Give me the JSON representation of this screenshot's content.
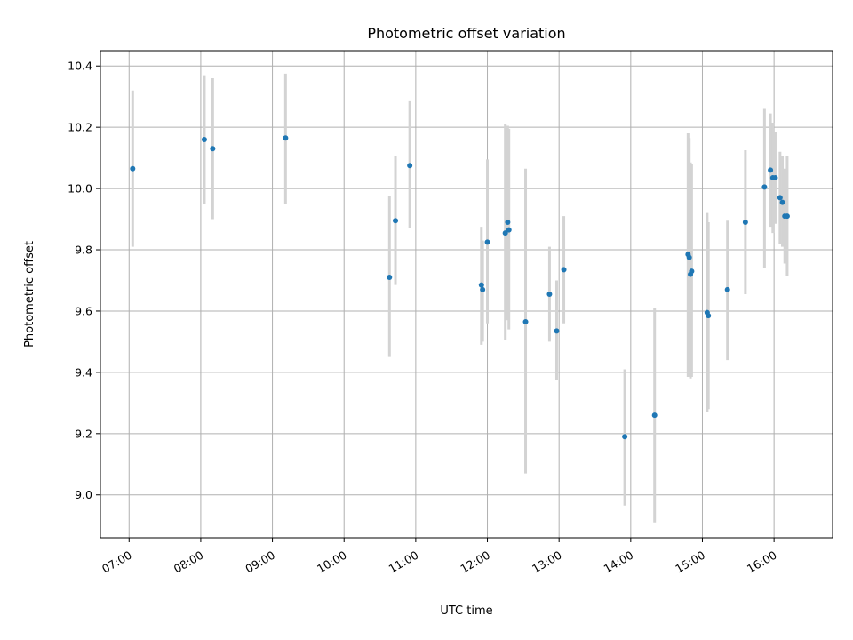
{
  "chart_data": {
    "type": "scatter",
    "title": "Photometric offset variation",
    "xlabel": "UTC time",
    "ylabel": "Photometric offset",
    "xlim": [
      "06:36",
      "16:49"
    ],
    "ylim": [
      8.86,
      10.45
    ],
    "grid": true,
    "x_ticks": [
      "07:00",
      "08:00",
      "09:00",
      "10:00",
      "11:00",
      "12:00",
      "13:00",
      "14:00",
      "15:00",
      "16:00"
    ],
    "y_ticks": [
      "9.0",
      "9.2",
      "9.4",
      "9.6",
      "9.8",
      "10.0",
      "10.2",
      "10.4"
    ],
    "colors": {
      "point": "#1f77b4",
      "errorbar": "#d3d3d3",
      "grid": "#b0b0b0"
    },
    "points": [
      {
        "x": "07:03",
        "y": 10.065,
        "ylo": 9.81,
        "yhi": 10.32
      },
      {
        "x": "08:03",
        "y": 10.16,
        "ylo": 9.95,
        "yhi": 10.37
      },
      {
        "x": "08:10",
        "y": 10.13,
        "ylo": 9.9,
        "yhi": 10.36
      },
      {
        "x": "09:11",
        "y": 10.165,
        "ylo": 9.95,
        "yhi": 10.375
      },
      {
        "x": "10:38",
        "y": 9.71,
        "ylo": 9.45,
        "yhi": 9.975
      },
      {
        "x": "10:43",
        "y": 9.895,
        "ylo": 9.685,
        "yhi": 10.105
      },
      {
        "x": "10:55",
        "y": 10.075,
        "ylo": 9.87,
        "yhi": 10.285
      },
      {
        "x": "11:55",
        "y": 9.685,
        "ylo": 9.49,
        "yhi": 9.875
      },
      {
        "x": "11:56",
        "y": 9.67,
        "ylo": 9.5,
        "yhi": 9.83
      },
      {
        "x": "12:00",
        "y": 9.825,
        "ylo": 9.56,
        "yhi": 10.095
      },
      {
        "x": "12:15",
        "y": 9.855,
        "ylo": 9.505,
        "yhi": 10.21
      },
      {
        "x": "12:17",
        "y": 9.89,
        "ylo": 9.57,
        "yhi": 10.205
      },
      {
        "x": "12:18",
        "y": 9.865,
        "ylo": 9.54,
        "yhi": 10.195
      },
      {
        "x": "12:32",
        "y": 9.565,
        "ylo": 9.07,
        "yhi": 10.065
      },
      {
        "x": "12:52",
        "y": 9.655,
        "ylo": 9.5,
        "yhi": 9.81
      },
      {
        "x": "12:58",
        "y": 9.535,
        "ylo": 9.375,
        "yhi": 9.7
      },
      {
        "x": "13:04",
        "y": 9.735,
        "ylo": 9.56,
        "yhi": 9.91
      },
      {
        "x": "13:55",
        "y": 9.19,
        "ylo": 8.965,
        "yhi": 9.41
      },
      {
        "x": "14:20",
        "y": 9.26,
        "ylo": 8.91,
        "yhi": 9.61
      },
      {
        "x": "14:48",
        "y": 9.785,
        "ylo": 9.385,
        "yhi": 10.18
      },
      {
        "x": "14:49",
        "y": 9.775,
        "ylo": 9.39,
        "yhi": 10.165
      },
      {
        "x": "14:50",
        "y": 9.72,
        "ylo": 9.38,
        "yhi": 10.085
      },
      {
        "x": "14:51",
        "y": 9.73,
        "ylo": 9.385,
        "yhi": 10.08
      },
      {
        "x": "15:04",
        "y": 9.595,
        "ylo": 9.27,
        "yhi": 9.92
      },
      {
        "x": "15:05",
        "y": 9.585,
        "ylo": 9.28,
        "yhi": 9.89
      },
      {
        "x": "15:21",
        "y": 9.67,
        "ylo": 9.44,
        "yhi": 9.895
      },
      {
        "x": "15:36",
        "y": 9.89,
        "ylo": 9.655,
        "yhi": 10.125
      },
      {
        "x": "15:52",
        "y": 10.005,
        "ylo": 9.74,
        "yhi": 10.26
      },
      {
        "x": "15:57",
        "y": 10.06,
        "ylo": 9.875,
        "yhi": 10.245
      },
      {
        "x": "15:59",
        "y": 10.035,
        "ylo": 9.855,
        "yhi": 10.215
      },
      {
        "x": "16:01",
        "y": 10.035,
        "ylo": 9.885,
        "yhi": 10.185
      },
      {
        "x": "16:05",
        "y": 9.97,
        "ylo": 9.82,
        "yhi": 10.12
      },
      {
        "x": "16:07",
        "y": 9.955,
        "ylo": 9.81,
        "yhi": 10.105
      },
      {
        "x": "16:09",
        "y": 9.91,
        "ylo": 9.755,
        "yhi": 10.065
      },
      {
        "x": "16:11",
        "y": 9.91,
        "ylo": 9.715,
        "yhi": 10.105
      }
    ]
  }
}
